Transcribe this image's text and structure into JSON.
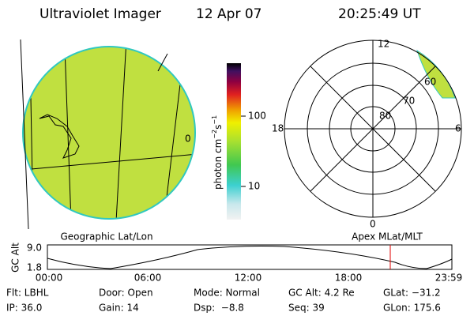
{
  "header": {
    "title": "Ultraviolet Imager",
    "date": "12 Apr 07",
    "time": "20:25:49 UT"
  },
  "globe": {
    "label": "Geographic Lat/Lon",
    "meridian_label": "0"
  },
  "colorbar": {
    "unit": {
      "base": "photon cm",
      "exp1": "−2",
      "mid": "s",
      "exp2": "−1"
    },
    "ticks": [
      "100",
      "10"
    ]
  },
  "polar": {
    "label": "Apex MLat/MLT",
    "mlt": {
      "top": "12",
      "left": "18",
      "right": "6",
      "bottom": "0"
    },
    "rings": [
      "80",
      "70",
      "60"
    ]
  },
  "timeline": {
    "axis_label": "GC Alt",
    "y_top": "9.0",
    "y_bottom": "1.8",
    "x_labels": [
      "00:00",
      "06:00",
      "12:00",
      "18:00",
      "23:59"
    ]
  },
  "footer": {
    "rows": [
      [
        "Flt: LBHL",
        "Door: Open",
        "Mode: Normal",
        "GC Alt: 4.2 Re",
        "GLat: −31.2"
      ],
      [
        "IP: 36.0",
        "Gain: 14",
        "Dsp:  −8.8",
        "Seq: 39",
        "GLon: 175.6"
      ]
    ]
  }
}
